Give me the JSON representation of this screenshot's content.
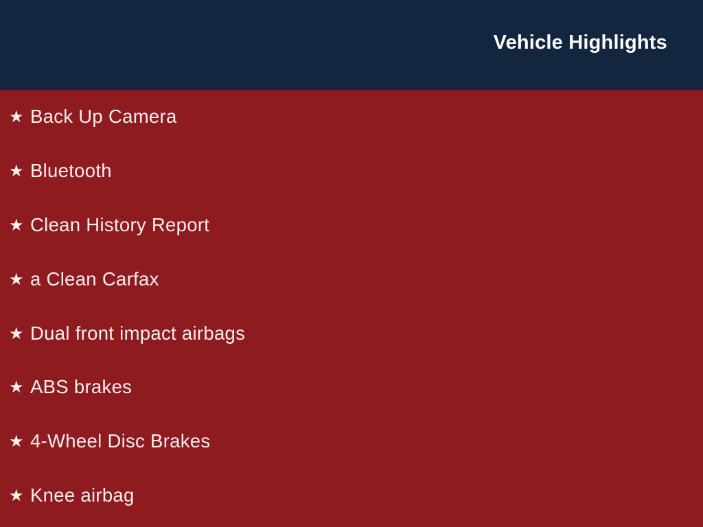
{
  "slide": {
    "header": {
      "title": "Vehicle Highlights"
    },
    "items": [
      {
        "label": "Back Up Camera"
      },
      {
        "label": "Bluetooth"
      },
      {
        "label": "Clean History Report"
      },
      {
        "label": "a Clean Carfax"
      },
      {
        "label": "Dual front impact airbags"
      },
      {
        "label": "ABS brakes"
      },
      {
        "label": "4-Wheel Disc Brakes"
      },
      {
        "label": "Knee airbag"
      }
    ],
    "bullet_icon": "★",
    "colors": {
      "header_background": "#13253f",
      "body_background": "#8e1b20",
      "title_text": "#fcfcfc",
      "item_text": "#f6eded"
    }
  }
}
